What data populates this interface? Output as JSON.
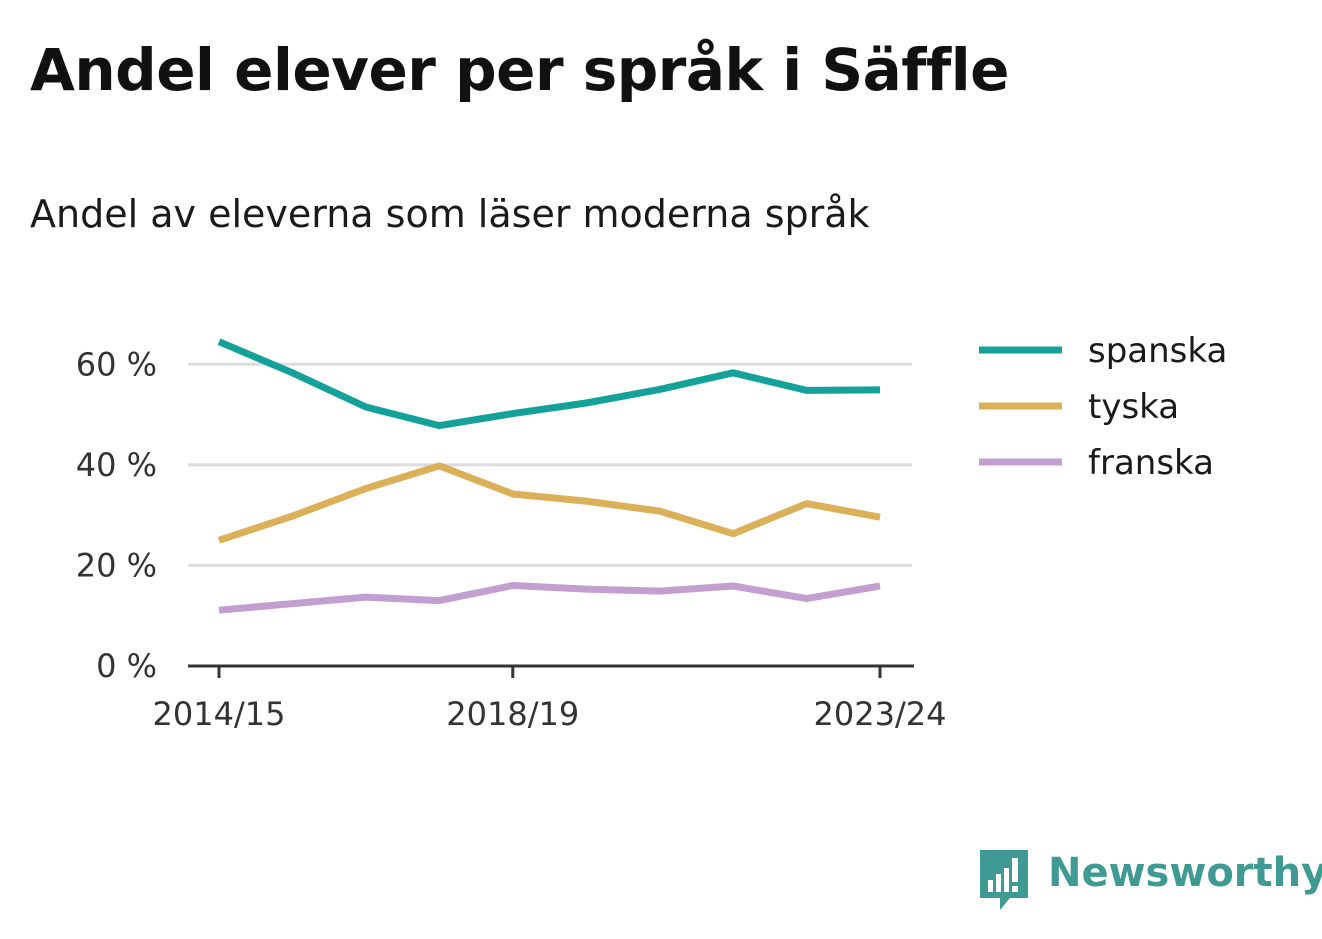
{
  "title": "Andel elever per språk i Säffle",
  "subtitle": "Andel av eleverna som läser moderna språk",
  "brand": {
    "name": "Newsworthy",
    "color": "#3e9a92",
    "icon": "bar-chart-speech-icon"
  },
  "chart_data": {
    "type": "line",
    "title": "Andel elever per språk i Säffle",
    "subtitle": "Andel av eleverna som läser moderna språk",
    "x": [
      "2014/15",
      "2015/16",
      "2016/17",
      "2017/18",
      "2018/19",
      "2019/20",
      "2020/21",
      "2021/22",
      "2022/23",
      "2023/24"
    ],
    "x_tick_labels": [
      "2014/15",
      "2018/19",
      "2023/24"
    ],
    "ylim": [
      0,
      70
    ],
    "y_ticks": [
      0,
      20,
      40,
      60
    ],
    "y_tick_labels": [
      "0 %",
      "20 %",
      "40 %",
      "60 %"
    ],
    "grid": true,
    "legend_position": "right",
    "series": [
      {
        "name": "spanska",
        "color": "#13a199",
        "values": [
          64.5,
          58.3,
          51.5,
          47.8,
          50.2,
          52.3,
          55.0,
          58.3,
          54.8,
          54.9
        ]
      },
      {
        "name": "tyska",
        "color": "#dbb059",
        "values": [
          25.0,
          29.8,
          35.3,
          39.8,
          34.2,
          32.8,
          30.8,
          26.3,
          32.3,
          29.6
        ]
      },
      {
        "name": "franska",
        "color": "#c39ed0",
        "values": [
          11.1,
          12.4,
          13.7,
          13.0,
          16.0,
          15.3,
          14.9,
          15.9,
          13.4,
          15.9
        ]
      }
    ]
  }
}
